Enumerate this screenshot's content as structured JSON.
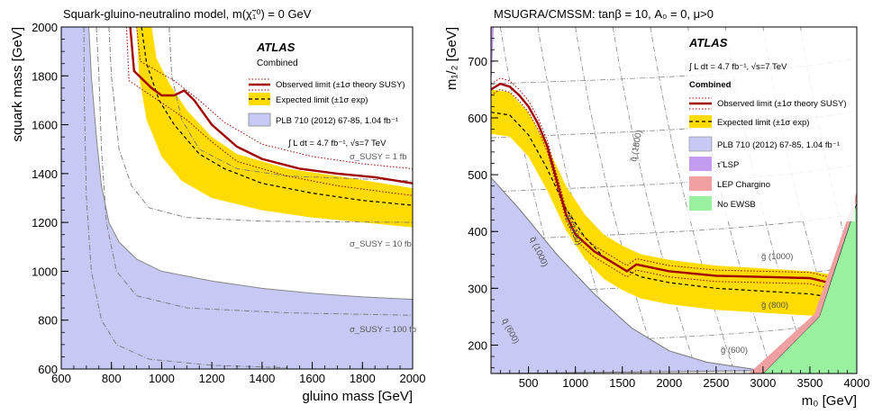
{
  "chart_data": [
    {
      "type": "line",
      "title": "Squark-gluino-neutralino model,  m(χ̃₁⁰) = 0 GeV",
      "xlabel": "gluino mass [GeV]",
      "ylabel": "squark mass [GeV]",
      "xlim": [
        600,
        2000
      ],
      "ylim": [
        600,
        2000
      ],
      "xticks": [
        600,
        800,
        1000,
        1200,
        1400,
        1600,
        1800,
        2000
      ],
      "yticks": [
        600,
        800,
        1000,
        1200,
        1400,
        1600,
        1800,
        2000
      ],
      "legend_placement": "top-right",
      "legend": {
        "brand": "ATLAS",
        "header": "Combined",
        "observed": "Observed limit (±1σ theory SUSY)",
        "expected": "Expected limit (±1σ exp)",
        "prior": "PLB 710 (2012) 67-85, 1.04 fb⁻¹",
        "lumi": "∫ L dt = 4.7 fb⁻¹, √s=7 TeV"
      },
      "colors": {
        "observed": "#a00000",
        "expected_band": "#ffdb00",
        "prior_excluded": "#c8c8f5",
        "cross_section": "#888888"
      },
      "series": [
        {
          "name": "Observed limit",
          "x": [
            875,
            890,
            960,
            1000,
            1050,
            1090,
            1130,
            1200,
            1300,
            1400,
            1550,
            1700,
            1850,
            2000
          ],
          "y": [
            2000,
            1820,
            1750,
            1720,
            1720,
            1740,
            1700,
            1600,
            1510,
            1460,
            1420,
            1400,
            1385,
            1360
          ]
        },
        {
          "name": "Observed limit +1σ theory",
          "x": [
            900,
            915,
            1050,
            1150,
            1250,
            1400,
            1600,
            1800,
            2000
          ],
          "y": [
            2000,
            1860,
            1780,
            1700,
            1610,
            1520,
            1470,
            1440,
            1420
          ]
        },
        {
          "name": "Observed limit -1σ theory",
          "x": [
            860,
            870,
            1000,
            1100,
            1200,
            1300,
            1500,
            1700,
            2000
          ],
          "y": [
            2000,
            1780,
            1690,
            1620,
            1530,
            1450,
            1390,
            1350,
            1310
          ]
        },
        {
          "name": "Expected limit",
          "x": [
            920,
            940,
            990,
            1050,
            1150,
            1250,
            1400,
            1600,
            1800,
            2000
          ],
          "y": [
            2000,
            1850,
            1700,
            1600,
            1480,
            1420,
            1360,
            1320,
            1290,
            1270
          ]
        },
        {
          "name": "Expected limit +1σ exp",
          "x": [
            960,
            980,
            1030,
            1100,
            1200,
            1300,
            1500,
            1700,
            2000
          ],
          "y": [
            2000,
            1870,
            1770,
            1660,
            1550,
            1480,
            1420,
            1390,
            1340
          ]
        },
        {
          "name": "Expected limit -1σ exp",
          "x": [
            900,
            910,
            940,
            1000,
            1080,
            1200,
            1400,
            1600,
            1800,
            2000
          ],
          "y": [
            2000,
            1800,
            1620,
            1470,
            1370,
            1300,
            1250,
            1220,
            1200,
            1180
          ]
        },
        {
          "name": "PLB 710 (2012) 67-85, 1.04 fb⁻¹",
          "x": [
            600,
            710,
            720,
            740,
            760,
            790,
            830,
            900,
            1000,
            1200,
            1400,
            1600,
            1800,
            2000
          ],
          "y": [
            2000,
            2000,
            1800,
            1550,
            1350,
            1200,
            1120,
            1050,
            1000,
            960,
            930,
            910,
            895,
            885
          ]
        }
      ],
      "annotations": [
        "σ_SUSY = 1 fb",
        "σ_SUSY = 10 fb",
        "σ_SUSY = 100 fb"
      ]
    },
    {
      "type": "line",
      "title": "MSUGRA/CMSSM: tanβ = 10, A₀ = 0, μ>0",
      "xlabel": "m₀ [GeV]",
      "ylabel": "m₁/₂ [GeV]",
      "xlim": [
        100,
        4000
      ],
      "ylim": [
        150,
        760
      ],
      "xticks": [
        500,
        1000,
        1500,
        2000,
        2500,
        3000,
        3500,
        4000
      ],
      "yticks": [
        200,
        300,
        400,
        500,
        600,
        700
      ],
      "legend_placement": "top-right",
      "legend": {
        "brand": "ATLAS",
        "lumi": "∫ L dt = 4.7 fb⁻¹, √s=7 TeV",
        "header": "Combined",
        "observed": "Observed limit (±1σ theory SUSY)",
        "expected": "Expected limit (±1σ exp)",
        "prior": "PLB 710 (2012) 67-85, 1.04 fb⁻¹",
        "stau": "τ̃ LSP",
        "lep": "LEP Chargino",
        "noewsb": "No EWSB"
      },
      "colors": {
        "observed": "#a00000",
        "expected_band": "#ffdb00",
        "prior_excluded": "#c8c8f5",
        "stau": "#c39bf0",
        "lep": "#f0a0a0",
        "noewsb": "#99f09f"
      },
      "series": [
        {
          "name": "Observed limit",
          "x": [
            100,
            200,
            300,
            400,
            500,
            600,
            700,
            800,
            900,
            1000,
            1200,
            1400,
            1550,
            1650,
            2000,
            2500,
            3000,
            3500,
            3700
          ],
          "y": [
            650,
            660,
            655,
            640,
            620,
            590,
            550,
            490,
            430,
            395,
            365,
            345,
            330,
            342,
            330,
            322,
            320,
            318,
            310
          ]
        },
        {
          "name": "Expected limit",
          "x": [
            100,
            300,
            500,
            700,
            900,
            1100,
            1300,
            1500,
            1700,
            2000,
            2500,
            3000,
            3500,
            3700
          ],
          "y": [
            610,
            605,
            570,
            510,
            440,
            390,
            355,
            335,
            320,
            310,
            300,
            295,
            290,
            285
          ]
        },
        {
          "name": "PLB 710 (2012) 67-85, 1.04 fb⁻¹",
          "x": [
            100,
            400,
            800,
            1200,
            1600,
            2000,
            2400,
            2800,
            3000
          ],
          "y": [
            495,
            440,
            360,
            290,
            230,
            190,
            170,
            160,
            155
          ]
        }
      ],
      "annotations": [
        "q̃ (1800)",
        "q̃ (1400)",
        "q̃ (1000)",
        "q̃ (600)",
        "g̃ (1000)",
        "g̃ (800)",
        "g̃ (600)"
      ]
    }
  ]
}
